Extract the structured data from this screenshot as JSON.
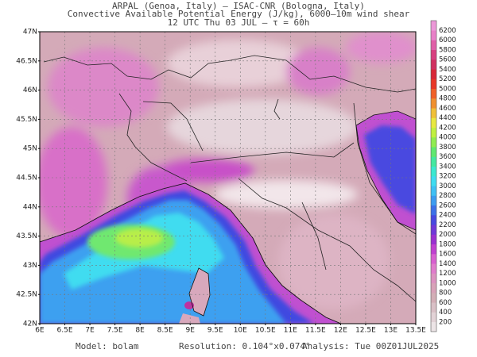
{
  "header": {
    "line1": "ARPAL (Genoa, Italy)  –  ISAC-CNR (Bologna, Italy)",
    "line2": "Convective Available Potential Energy (J/kg), 6000–10m wind shear",
    "line3": "12 UTC Thu 03 JUL  –  τ = 60h"
  },
  "map": {
    "lat_labels": [
      "47N",
      "46.5N",
      "46N",
      "45.5N",
      "45N",
      "44.5N",
      "44N",
      "43.5N",
      "43N",
      "42.5N",
      "42N"
    ],
    "lon_labels": [
      "6E",
      "6.5E",
      "7E",
      "7.5E",
      "8E",
      "8.5E",
      "9E",
      "9.5E",
      "10E",
      "10.5E",
      "11E",
      "11.5E",
      "12E",
      "12.5E",
      "13E",
      "13.5E"
    ]
  },
  "colorbar": {
    "labels": [
      200,
      400,
      600,
      800,
      1000,
      1200,
      1400,
      1600,
      1800,
      2000,
      2200,
      2400,
      2600,
      2800,
      3000,
      3200,
      3400,
      3600,
      3800,
      4000,
      4200,
      4400,
      4600,
      4800,
      5000,
      5200,
      5400,
      5600,
      5800,
      6000,
      6200
    ],
    "colors": [
      "#ece4e6",
      "#e2d2d6",
      "#d9c0c6",
      "#d3aeb6",
      "#d8a2b8",
      "#dc92c0",
      "#e07ccc",
      "#d860d0",
      "#c040d0",
      "#9a30d0",
      "#7038d8",
      "#4848e0",
      "#3c70e8",
      "#3c9cf0",
      "#40c0f4",
      "#40dcf0",
      "#3ce8d0",
      "#44e8a0",
      "#60e870",
      "#90ec50",
      "#c0f040",
      "#e8e840",
      "#f0c038",
      "#f09030",
      "#f06028",
      "#e83828",
      "#d82838",
      "#d03060",
      "#d84080",
      "#e060a8",
      "#e880c8",
      "#ec98d8"
    ]
  },
  "footer": {
    "model": "Model: bolam",
    "resolution": "Resolution: 0.104°x0.074°",
    "analysis": "Analysis: Tue 00Z01JUL2025"
  }
}
